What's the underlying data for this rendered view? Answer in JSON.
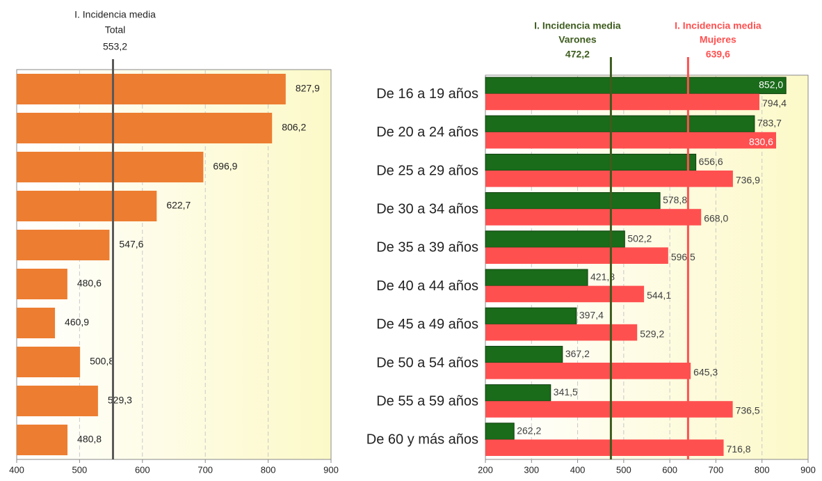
{
  "chart_data": [
    {
      "type": "bar",
      "orientation": "horizontal",
      "values": [
        827.9,
        806.2,
        696.9,
        622.7,
        547.6,
        480.6,
        460.9,
        500.8,
        529.3,
        480.8
      ],
      "value_labels": [
        "827,9",
        "806,2",
        "696,9",
        "622,7",
        "547,6",
        "480,6",
        "460,9",
        "500,8",
        "529,3",
        "480,8"
      ],
      "color": "#ed7d31",
      "xlim": [
        400,
        900
      ],
      "xticks": [
        400,
        500,
        600,
        700,
        800,
        900
      ],
      "grid": true,
      "reference_lines": [
        {
          "text": [
            "I. Incidencia media",
            "Total"
          ],
          "value": 553.2,
          "value_label": "553,2",
          "color": "#595959"
        }
      ]
    },
    {
      "type": "bar",
      "orientation": "horizontal",
      "categories": [
        "De 16 a 19 años",
        "De 20 a 24 años",
        "De 25 a 29 años",
        "De 30 a 34 años",
        "De 35 a 39 años",
        "De 40 a 44 años",
        "De 45 a 49 años",
        "De 50 a 54 años",
        "De 55 a 59 años",
        "De 60 y más años"
      ],
      "series": [
        {
          "color": "#1a6b1a",
          "values": [
            852.0,
            783.7,
            656.6,
            578.8,
            502.2,
            421.8,
            397.4,
            367.2,
            341.5,
            262.2
          ],
          "value_labels": [
            "852,0",
            "783,7",
            "656,6",
            "578,8",
            "502,2",
            "421,8",
            "397,4",
            "367,2",
            "341,5",
            "262,2"
          ]
        },
        {
          "color": "#ff5050",
          "values": [
            794.4,
            830.6,
            736.9,
            668.0,
            596.5,
            544.1,
            529.2,
            645.3,
            736.5,
            716.8
          ],
          "value_labels": [
            "794,4",
            "830,6",
            "736,9",
            "668,0",
            "596,5",
            "544,1",
            "529,2",
            "645,3",
            "736,5",
            "716,8"
          ]
        }
      ],
      "xlim": [
        200,
        900
      ],
      "xticks": [
        200,
        300,
        400,
        500,
        600,
        700,
        800,
        900
      ],
      "grid": true,
      "reference_lines": [
        {
          "text": [
            "I. Incidencia media",
            "Varones"
          ],
          "value": 472.2,
          "value_label": "472,2",
          "color": "#3d5c1e"
        },
        {
          "text": [
            "I. Incidencia media",
            "Mujeres"
          ],
          "value": 639.6,
          "value_label": "639,6",
          "color": "#ff5050"
        }
      ]
    }
  ]
}
